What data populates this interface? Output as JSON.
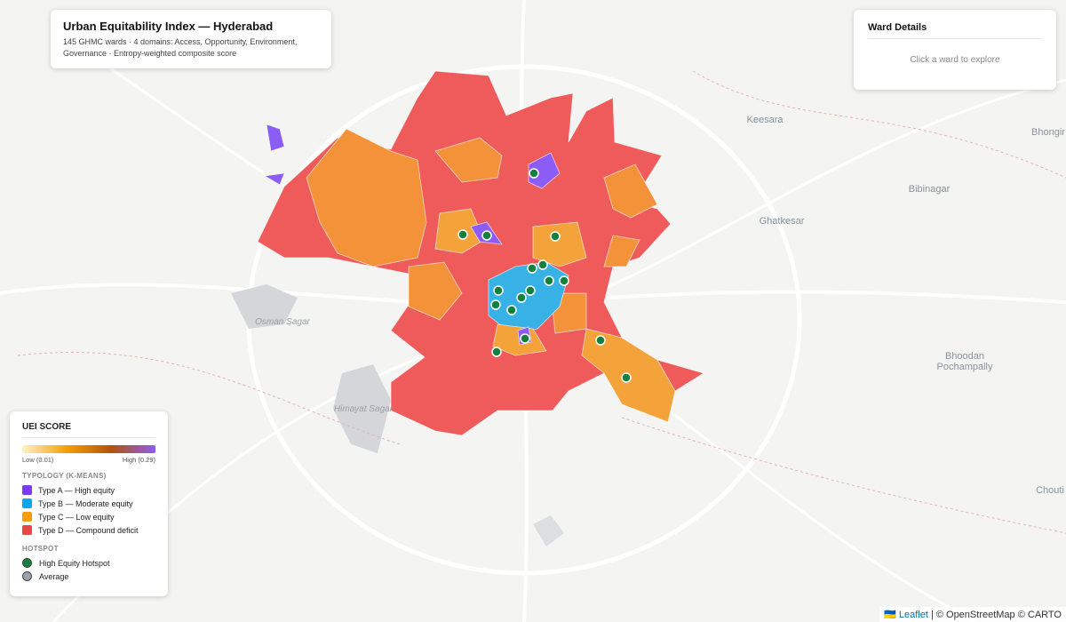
{
  "header": {
    "title": "Urban Equitability Index — Hyderabad",
    "subtitle": "145 GHMC wards · 4 domains: Access, Opportunity, Environment, Governance · Entropy-weighted composite score"
  },
  "details": {
    "title": "Ward Details",
    "hint": "Click a ward to explore"
  },
  "legend": {
    "title": "UEI SCORE",
    "low": "Low (0.01)",
    "high": "High (0.29)",
    "typology_title": "TYPOLOGY (K-MEANS)",
    "typology": [
      {
        "label": "Type A — High equity",
        "color": "#7c3aed"
      },
      {
        "label": "Type B — Moderate equity",
        "color": "#0ea5e9"
      },
      {
        "label": "Type C — Low equity",
        "color": "#f59e0b"
      },
      {
        "label": "Type D — Compound deficit",
        "color": "#ef4444"
      }
    ],
    "hotspot_title": "HOTSPOT",
    "hotspot": [
      {
        "label": "High Equity Hotspot",
        "color": "#15803d"
      },
      {
        "label": "Average",
        "color": "#9ca3af"
      }
    ]
  },
  "places": {
    "keesara": "Keesara",
    "bhongir": "Bhongir",
    "bibinagar": "Bibinagar",
    "ghatkesar": "Ghatkesar",
    "osman_sagar": "Osman Sagar",
    "bhoodan_1": "Bhoodan",
    "bhoodan_2": "Pochampally",
    "himayat_sagar": "Himayat Sagar",
    "chouti": "Chouti"
  },
  "attribution": {
    "leaflet": "Leaflet",
    "rest": "| © OpenStreetMap © CARTO"
  }
}
